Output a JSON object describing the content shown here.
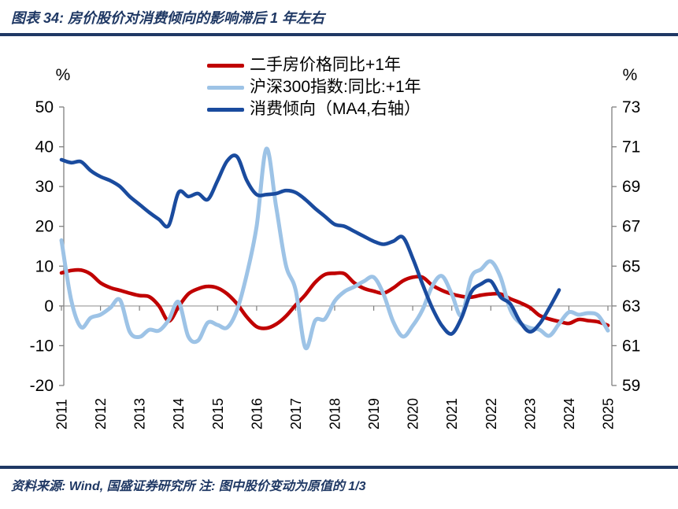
{
  "page": {
    "title": "图表 34: 房价股价对消费倾向的影响滞后 1 年左右",
    "source_note": "资料来源: Wind, 国盛证券研究所 注: 图中股价变动为原值的 1/3",
    "accent_color": "#1f3864"
  },
  "left_axis": {
    "unit": "%",
    "min": -20,
    "max": 50,
    "ticks": [
      50,
      40,
      30,
      20,
      10,
      0,
      -10,
      -20
    ]
  },
  "right_axis": {
    "unit": "%",
    "min": 59,
    "max": 73,
    "ticks": [
      73,
      71,
      69,
      67,
      65,
      63,
      61,
      59
    ]
  },
  "x_axis": {
    "years": [
      2011,
      2012,
      2013,
      2014,
      2015,
      2016,
      2017,
      2018,
      2019,
      2020,
      2021,
      2022,
      2023,
      2024,
      2025
    ]
  },
  "chart_data": {
    "type": "line",
    "title": "图表 34: 房价股价对消费倾向的影响滞后 1 年左右",
    "x_start": 2011.0,
    "x_step": 0.25,
    "grid": "zero-line-only",
    "legend_position": "top-center",
    "left_ylim": [
      -20,
      50
    ],
    "right_ylim": [
      59,
      73
    ],
    "series": [
      {
        "name": "二手房价格同比+1年",
        "axis": "left",
        "color": "#c00000",
        "values": [
          8.3,
          8.9,
          9.0,
          8.0,
          5.8,
          4.6,
          3.9,
          3.2,
          2.6,
          2.3,
          0.0,
          -3.8,
          -0.2,
          3.0,
          4.3,
          4.9,
          4.5,
          3.0,
          0.5,
          -2.8,
          -5.2,
          -5.6,
          -4.6,
          -2.6,
          0.2,
          2.8,
          5.9,
          7.9,
          8.2,
          8.1,
          5.8,
          4.4,
          3.7,
          3.2,
          4.5,
          6.3,
          7.2,
          7.2,
          5.2,
          3.9,
          3.0,
          2.4,
          2.2,
          2.7,
          3.0,
          3.0,
          1.8,
          0.8,
          -0.4,
          -2.4,
          -3.3,
          -3.9,
          -4.4,
          -3.4,
          -3.7,
          -4.0,
          -4.9
        ]
      },
      {
        "name": "沪深300指数:同比:+1年",
        "axis": "left",
        "color": "#9dc3e6",
        "values": [
          16.5,
          1.5,
          -5.3,
          -3.0,
          -2.2,
          -0.5,
          1.5,
          -6.5,
          -7.8,
          -6.0,
          -6.2,
          -3.5,
          1.0,
          -7.7,
          -8.7,
          -4.2,
          -4.8,
          -5.4,
          -1.0,
          8.0,
          20.0,
          39.5,
          25.0,
          10.3,
          4.0,
          -10.5,
          -3.7,
          -3.3,
          1.2,
          3.6,
          4.8,
          6.2,
          7.2,
          3.0,
          -4.0,
          -7.7,
          -5.0,
          -1.0,
          5.0,
          7.5,
          3.0,
          -2.4,
          7.2,
          9.2,
          11.2,
          7.2,
          -1.0,
          -4.3,
          -5.5,
          -6.0,
          -7.5,
          -4.5,
          -1.6,
          -2.2,
          -1.8,
          -2.4,
          -6.2
        ]
      },
      {
        "name": "消费倾向（MA4,右轴）",
        "axis": "right",
        "color": "#1a4b9e",
        "values": [
          70.35,
          70.2,
          70.25,
          69.8,
          69.5,
          69.3,
          69.0,
          68.5,
          68.1,
          67.7,
          67.35,
          67.05,
          68.7,
          68.5,
          68.65,
          68.35,
          69.3,
          70.3,
          70.5,
          69.3,
          68.6,
          68.6,
          68.65,
          68.8,
          68.7,
          68.35,
          67.9,
          67.5,
          67.1,
          67.0,
          66.75,
          66.5,
          66.25,
          66.1,
          66.25,
          66.45,
          65.4,
          64.1,
          62.9,
          62.0,
          61.6,
          62.4,
          63.7,
          64.1,
          64.25,
          63.45,
          63.1,
          62.2,
          61.7,
          62.1,
          62.9,
          63.8
        ]
      }
    ]
  }
}
